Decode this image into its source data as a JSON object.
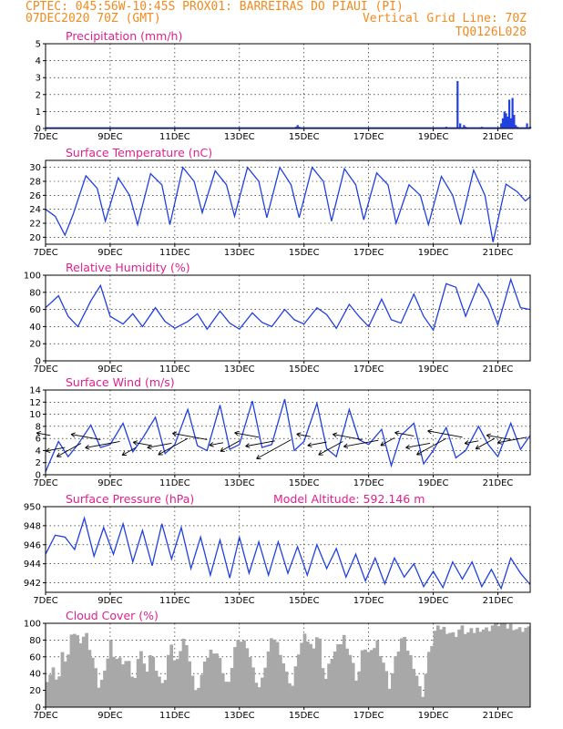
{
  "header": {
    "line1_left": "CPTEC:   045:56W-10:45S   PROX01: BARREIRAS DO PIAUI (PI)",
    "line2_left": "07DEC2020 70Z (GMT)",
    "line2_right": "Vertical Grid Line: 70Z",
    "line3_right": "TQ0126L028"
  },
  "colors": {
    "header": "#f28a1e",
    "panel_title": "#e0208c",
    "series": "#2040e0",
    "cloud": "#a8a8a8"
  },
  "x_axis": {
    "tick_labels": [
      "7DEC",
      "9DEC",
      "11DEC",
      "13DEC",
      "15DEC",
      "17DEC",
      "19DEC",
      "21DEC"
    ],
    "tick_days": [
      0,
      2,
      4,
      6,
      8,
      10,
      12,
      14
    ],
    "range_days": [
      0,
      15
    ]
  },
  "chart_data": [
    {
      "id": "precip",
      "type": "bar",
      "title": "Precipitation (mm/h)",
      "ylim": [
        0,
        5
      ],
      "yticks": [
        "0",
        "1",
        "2",
        "3",
        "4",
        "5"
      ],
      "extra_label": "",
      "x_days": [
        0.1,
        1.0,
        2.0,
        3.0,
        4.0,
        5.0,
        6.0,
        7.0,
        7.75,
        7.8,
        7.85,
        8.5,
        9.2,
        10.0,
        10.8,
        11.3,
        12.0,
        12.4,
        12.75,
        12.83,
        12.95,
        13.0,
        13.5,
        14.1,
        14.15,
        14.2,
        14.25,
        14.3,
        14.35,
        14.4,
        14.45,
        14.5,
        14.55,
        14.6,
        14.9,
        15.0
      ],
      "values": [
        0.05,
        0.05,
        0.05,
        0.05,
        0.05,
        0.05,
        0.05,
        0.05,
        0.1,
        0.2,
        0.1,
        0.05,
        0.05,
        0.05,
        0.05,
        0.05,
        0.05,
        0.1,
        2.8,
        0.3,
        0.2,
        0.1,
        0.1,
        0.3,
        0.6,
        1.0,
        0.9,
        0.7,
        1.7,
        0.6,
        1.8,
        0.8,
        0.2,
        0.1,
        0.3,
        0.1
      ]
    },
    {
      "id": "temp",
      "type": "line",
      "title": "Surface Temperature (nC)",
      "ylim": [
        19,
        31
      ],
      "yticks": [
        "20",
        "22",
        "24",
        "26",
        "28",
        "30"
      ],
      "extra_label": "",
      "x": [
        0,
        0.3,
        0.6,
        0.85,
        1.25,
        1.6,
        1.85,
        2.25,
        2.6,
        2.85,
        3.25,
        3.6,
        3.85,
        4.25,
        4.6,
        4.85,
        5.25,
        5.6,
        5.85,
        6.25,
        6.6,
        6.85,
        7.25,
        7.6,
        7.85,
        8.25,
        8.6,
        8.85,
        9.25,
        9.6,
        9.85,
        10.25,
        10.6,
        10.85,
        11.25,
        11.6,
        11.85,
        12.25,
        12.6,
        12.85,
        13.25,
        13.6,
        13.85,
        14.25,
        14.6,
        14.85,
        15.0
      ],
      "values": [
        24,
        23,
        20.3,
        23.2,
        28.8,
        27,
        22.3,
        28.5,
        26,
        21.8,
        29.1,
        27.5,
        21.8,
        30.0,
        28,
        23.5,
        29.5,
        27.5,
        23,
        30.0,
        28,
        22.8,
        30.0,
        27.5,
        22.8,
        30.0,
        28,
        22.3,
        29.8,
        27.5,
        22.5,
        29.2,
        27.5,
        22,
        27.5,
        26,
        21.8,
        28.7,
        26,
        21.8,
        29.6,
        26,
        19.3,
        27.6,
        26.5,
        25.2,
        25.8
      ]
    },
    {
      "id": "rh",
      "type": "line",
      "title": "Relative Humidity (%)",
      "ylim": [
        0,
        100
      ],
      "yticks": [
        "0",
        "20",
        "40",
        "60",
        "80",
        "100"
      ],
      "extra_label": "",
      "x": [
        0,
        0.4,
        0.7,
        1.0,
        1.4,
        1.7,
        2.0,
        2.4,
        2.7,
        3.0,
        3.4,
        3.7,
        4.0,
        4.4,
        4.7,
        5.0,
        5.4,
        5.7,
        6.0,
        6.4,
        6.7,
        7.0,
        7.4,
        7.7,
        8.0,
        8.4,
        8.7,
        9.0,
        9.4,
        9.7,
        10.0,
        10.4,
        10.7,
        11.0,
        11.4,
        11.7,
        12.0,
        12.4,
        12.7,
        13.0,
        13.4,
        13.7,
        14.0,
        14.4,
        14.7,
        15.0
      ],
      "values": [
        62,
        76,
        52,
        40,
        70,
        88,
        52,
        43,
        55,
        40,
        62,
        46,
        38,
        46,
        55,
        37,
        58,
        44,
        37,
        56,
        45,
        40,
        60,
        48,
        43,
        62,
        54,
        38,
        66,
        52,
        40,
        72,
        48,
        44,
        78,
        52,
        36,
        90,
        86,
        52,
        90,
        72,
        42,
        95,
        62,
        60
      ]
    },
    {
      "id": "wind",
      "type": "line",
      "title": "Surface Wind (m/s)",
      "ylim": [
        0,
        14
      ],
      "yticks": [
        "0",
        "2",
        "4",
        "6",
        "8",
        "10",
        "12",
        "14"
      ],
      "extra_label": "",
      "x": [
        0,
        0.4,
        0.7,
        1.0,
        1.4,
        1.7,
        2.0,
        2.4,
        2.7,
        3.0,
        3.4,
        3.7,
        4.0,
        4.4,
        4.7,
        5.0,
        5.4,
        5.7,
        6.0,
        6.4,
        6.7,
        7.0,
        7.4,
        7.7,
        8.0,
        8.4,
        8.7,
        9.0,
        9.4,
        9.7,
        10.0,
        10.4,
        10.7,
        11.0,
        11.4,
        11.7,
        12.0,
        12.4,
        12.7,
        13.0,
        13.4,
        13.7,
        14.0,
        14.4,
        14.7,
        15.0
      ],
      "values": [
        0.5,
        5.5,
        3,
        5,
        8.2,
        4.5,
        5,
        8.5,
        3.8,
        6,
        9.5,
        3.5,
        5,
        10.8,
        4.8,
        4,
        11.5,
        4.2,
        5,
        12.2,
        4.5,
        5,
        12.5,
        4,
        5.5,
        11.8,
        4.3,
        3,
        10.8,
        5.8,
        5,
        7.5,
        1.5,
        6.5,
        8.5,
        1.8,
        4,
        7.8,
        2.8,
        4,
        8,
        5,
        3,
        8.5,
        4.2,
        6.5
      ],
      "arrows_x": [
        0.15,
        0.6,
        1.1,
        1.7,
        2.3,
        2.8,
        3.3,
        3.9,
        4.4,
        5.0,
        5.5,
        6.0,
        6.6,
        7.1,
        7.6,
        8.2,
        8.7,
        9.2,
        9.8,
        10.3,
        10.8,
        11.4,
        11.9,
        12.4,
        12.9,
        13.4,
        13.9,
        14.4,
        14.9
      ],
      "arrows_y": [
        6.5,
        4.5,
        5.2,
        5.8,
        5.5,
        4.5,
        4.8,
        5.2,
        6.0,
        5.8,
        5.3,
        5.6,
        6.2,
        5.6,
        5.8,
        6.3,
        5.4,
        5.5,
        5.8,
        5.7,
        6.1,
        6.4,
        5.2,
        6.0,
        6.2,
        5.6,
        6.0,
        5.8,
        6.2
      ]
    },
    {
      "id": "pres",
      "type": "line",
      "title": "Surface Pressure (hPa)",
      "ylim": [
        941,
        950
      ],
      "yticks": [
        "942",
        "944",
        "946",
        "948",
        "950"
      ],
      "extra_label": "Model Altitude: 592.146 m",
      "x": [
        0,
        0.3,
        0.6,
        0.9,
        1.2,
        1.5,
        1.8,
        2.1,
        2.4,
        2.7,
        3.0,
        3.3,
        3.6,
        3.9,
        4.2,
        4.5,
        4.8,
        5.1,
        5.4,
        5.7,
        6.0,
        6.3,
        6.6,
        6.9,
        7.2,
        7.5,
        7.8,
        8.1,
        8.4,
        8.7,
        9.0,
        9.3,
        9.6,
        9.9,
        10.2,
        10.5,
        10.8,
        11.1,
        11.4,
        11.7,
        12.0,
        12.3,
        12.6,
        12.9,
        13.2,
        13.5,
        13.8,
        14.1,
        14.4,
        14.7,
        15.0
      ],
      "values": [
        945,
        947,
        946.8,
        945.5,
        948.8,
        944.8,
        947.8,
        945,
        948.2,
        944.2,
        947.5,
        943.8,
        948.2,
        944.5,
        947.8,
        943.5,
        946.8,
        942.8,
        946.5,
        942.5,
        946.8,
        943,
        946.3,
        942.8,
        946.3,
        943,
        945.8,
        942.8,
        946,
        943.5,
        945.6,
        942.6,
        945,
        942.2,
        944.6,
        941.9,
        944.6,
        942.6,
        944,
        941.6,
        943.2,
        941.5,
        944.2,
        942.4,
        944.2,
        941.6,
        943.4,
        941.4,
        944.6,
        943,
        941.8
      ]
    },
    {
      "id": "cloud",
      "type": "area",
      "title": "Cloud Cover (%)",
      "ylim": [
        0,
        100
      ],
      "yticks": [
        "0",
        "20",
        "40",
        "60",
        "80",
        "100"
      ],
      "extra_label": "",
      "x": [
        0,
        0.2,
        0.35,
        0.5,
        0.6,
        0.8,
        1.0,
        1.2,
        1.4,
        1.6,
        1.8,
        1.95,
        2.1,
        2.3,
        2.5,
        2.7,
        2.9,
        3.05,
        3.2,
        3.4,
        3.6,
        3.8,
        4.0,
        4.2,
        4.4,
        4.6,
        4.8,
        5.0,
        5.2,
        5.4,
        5.6,
        5.8,
        6.0,
        6.2,
        6.4,
        6.6,
        6.8,
        7.0,
        7.2,
        7.4,
        7.6,
        7.8,
        8.0,
        8.2,
        8.4,
        8.6,
        8.8,
        9.0,
        9.2,
        9.4,
        9.6,
        9.8,
        10.0,
        10.2,
        10.4,
        10.6,
        10.8,
        11.0,
        11.2,
        11.4,
        11.6,
        11.8,
        12.0,
        12.2,
        12.4,
        12.6,
        12.8,
        13.0,
        13.2,
        13.4,
        13.6,
        13.8,
        14.0,
        14.2,
        14.4,
        14.6,
        14.8,
        15.0
      ],
      "values": [
        35,
        45,
        30,
        70,
        50,
        92,
        80,
        88,
        60,
        25,
        40,
        80,
        60,
        55,
        55,
        30,
        70,
        40,
        65,
        45,
        20,
        75,
        50,
        85,
        60,
        15,
        40,
        65,
        70,
        50,
        20,
        70,
        80,
        75,
        40,
        20,
        60,
        85,
        70,
        40,
        25,
        70,
        85,
        70,
        90,
        30,
        60,
        70,
        85,
        60,
        30,
        75,
        60,
        80,
        55,
        25,
        60,
        85,
        65,
        45,
        10,
        60,
        90,
        95,
        92,
        85,
        95,
        88,
        90,
        95,
        92,
        98,
        100,
        95,
        98,
        92,
        95,
        90
      ]
    }
  ]
}
